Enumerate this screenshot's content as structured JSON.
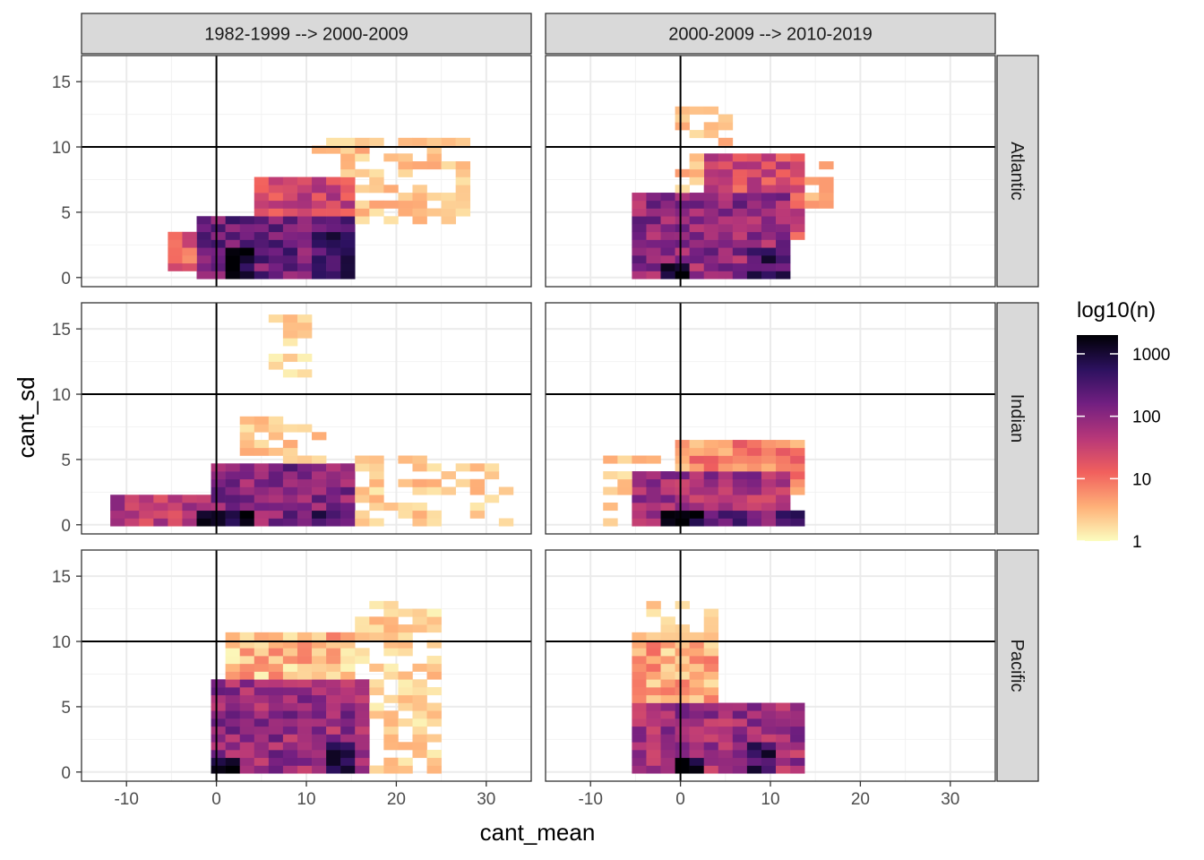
{
  "chart_data": {
    "type": "heatmap",
    "xlabel": "cant_mean",
    "ylabel": "cant_sd",
    "x_ticks": [
      -10,
      0,
      10,
      20,
      30
    ],
    "y_ticks": [
      0,
      5,
      10,
      15
    ],
    "x_tick_labels": [
      "-10",
      "0",
      "10",
      "20",
      "30"
    ],
    "y_tick_labels": [
      "0",
      "5",
      "10",
      "15"
    ],
    "xlim": [
      -15,
      35
    ],
    "ylim": [
      -0.7,
      17
    ],
    "bin_width": [
      1.6,
      0.6
    ],
    "reference_lines": {
      "x": 0,
      "y": 10
    },
    "grid": true,
    "facet_columns": [
      "1982-1999 --> 2000-2009",
      "2000-2009 --> 2010-2019"
    ],
    "facet_rows": [
      "Atlantic",
      "Indian",
      "Pacific"
    ],
    "legend": {
      "title": "log10(n)",
      "scale": "log10",
      "breaks": [
        1,
        10,
        100,
        1000
      ],
      "break_labels": [
        "1",
        "10",
        "100",
        "1000"
      ],
      "limits": [
        1,
        2000
      ],
      "palette": [
        "#fcfdbf",
        "#feb078",
        "#f1605d",
        "#b73779",
        "#721f81",
        "#2c115f",
        "#000004"
      ],
      "placement": "right"
    },
    "panels": [
      {
        "column": "1982-1999 --> 2000-2009",
        "row": "Atlantic",
        "blobs": [
          {
            "x": [
              -2,
              14
            ],
            "y": [
              0,
              4.5
            ],
            "n": 180
          },
          {
            "x": [
              4,
              14
            ],
            "y": [
              2,
              7.5
            ],
            "n": 30
          },
          {
            "x": [
              -5,
              2
            ],
            "y": [
              0.5,
              3
            ],
            "n": 15
          },
          {
            "x": [
              1,
              4
            ],
            "y": [
              0,
              2
            ],
            "n": 1300
          },
          {
            "x": [
              10,
              14
            ],
            "y": [
              0,
              3
            ],
            "n": 400
          },
          {
            "x": [
              10,
              26
            ],
            "y": [
              4,
              10
            ],
            "n": 1.6
          }
        ]
      },
      {
        "column": "2000-2009 --> 2010-2019",
        "row": "Atlantic",
        "blobs": [
          {
            "x": [
              -5,
              12
            ],
            "y": [
              0,
              6
            ],
            "n": 90
          },
          {
            "x": [
              2,
              12
            ],
            "y": [
              3,
              9
            ],
            "n": 25
          },
          {
            "x": [
              -1,
              5
            ],
            "y": [
              6,
              13
            ],
            "n": 1.8
          },
          {
            "x": [
              11,
              16
            ],
            "y": [
              5,
              9
            ],
            "n": 2
          },
          {
            "x": [
              -2,
              1
            ],
            "y": [
              0,
              1
            ],
            "n": 1700
          },
          {
            "x": [
              7,
              11
            ],
            "y": [
              0,
              2
            ],
            "n": 400
          }
        ]
      },
      {
        "column": "1982-1999 --> 2000-2009",
        "row": "Indian",
        "blobs": [
          {
            "x": [
              -12,
              0
            ],
            "y": [
              0,
              2
            ],
            "n": 40
          },
          {
            "x": [
              0,
              15
            ],
            "y": [
              0,
              4.5
            ],
            "n": 120
          },
          {
            "x": [
              -2,
              4
            ],
            "y": [
              0,
              1
            ],
            "n": 1700
          },
          {
            "x": [
              11,
              14
            ],
            "y": [
              0,
              1
            ],
            "n": 450
          },
          {
            "x": [
              3,
              12
            ],
            "y": [
              3,
              8
            ],
            "n": 1.5
          },
          {
            "x": [
              5,
              11
            ],
            "y": [
              11,
              16
            ],
            "n": 1.2
          },
          {
            "x": [
              15,
              32
            ],
            "y": [
              0,
              5
            ],
            "n": 1.5
          }
        ]
      },
      {
        "column": "2000-2009 --> 2010-2019",
        "row": "Indian",
        "blobs": [
          {
            "x": [
              -6,
              11
            ],
            "y": [
              0,
              4
            ],
            "n": 60
          },
          {
            "x": [
              0,
              14
            ],
            "y": [
              2,
              6
            ],
            "n": 6
          },
          {
            "x": [
              -2,
              2
            ],
            "y": [
              0,
              1
            ],
            "n": 1800
          },
          {
            "x": [
              2,
              8
            ],
            "y": [
              0,
              1
            ],
            "n": 250
          },
          {
            "x": [
              10,
              12
            ],
            "y": [
              0,
              1
            ],
            "n": 800
          },
          {
            "x": [
              -8,
              -3
            ],
            "y": [
              0,
              5
            ],
            "n": 1.5
          }
        ]
      },
      {
        "column": "1982-1999 --> 2000-2009",
        "row": "Pacific",
        "blobs": [
          {
            "x": [
              -1,
              15
            ],
            "y": [
              0,
              7
            ],
            "n": 80
          },
          {
            "x": [
              1,
              14
            ],
            "y": [
              4,
              10
            ],
            "n": 3
          },
          {
            "x": [
              -1,
              2
            ],
            "y": [
              0,
              1
            ],
            "n": 2000
          },
          {
            "x": [
              12,
              14
            ],
            "y": [
              0,
              2
            ],
            "n": 600
          },
          {
            "x": [
              15,
              23
            ],
            "y": [
              0,
              13
            ],
            "n": 1.3
          }
        ]
      },
      {
        "column": "2000-2009 --> 2010-2019",
        "row": "Pacific",
        "blobs": [
          {
            "x": [
              -5,
              13
            ],
            "y": [
              0,
              5
            ],
            "n": 70
          },
          {
            "x": [
              -6,
              3
            ],
            "y": [
              4,
              10
            ],
            "n": 4
          },
          {
            "x": [
              -1,
              2
            ],
            "y": [
              0,
              1
            ],
            "n": 2000
          },
          {
            "x": [
              8,
              11
            ],
            "y": [
              0,
              2
            ],
            "n": 500
          },
          {
            "x": [
              -4,
              3
            ],
            "y": [
              9,
              13
            ],
            "n": 1.5
          }
        ]
      }
    ]
  }
}
